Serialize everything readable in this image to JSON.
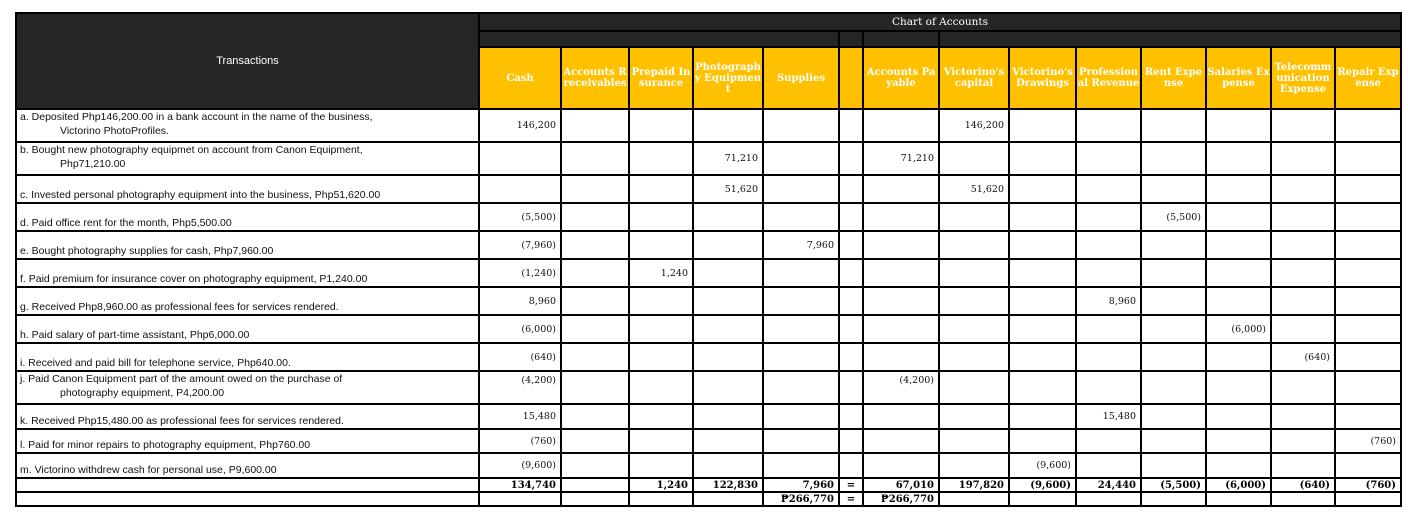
{
  "header": {
    "transactions_label": "Transactions",
    "chart_title": "Chart of Accounts",
    "accounts": [
      "Cash",
      "Accounts Rreceivables",
      "Prepaid Insurance",
      "Photography Equipment",
      "Supplies",
      "",
      "Accounts Payable",
      "Victorino's capital",
      "Victorino's Drawings",
      "Professional Revenue",
      "Rent Expense",
      "Salaries Expense",
      "Telecommunication Expense",
      "Repair Expense"
    ]
  },
  "colors": {
    "header_dark": "#262626",
    "header_accent": "#FFC000",
    "border": "#000000"
  },
  "rows": [
    {
      "line1": "a. Deposited Php146,200.00 in a bank account in the name of the business,",
      "line2": "Victorino PhotoProfiles.",
      "v": [
        "146,200",
        "",
        "",
        "",
        "",
        "",
        "",
        "146,200",
        "",
        "",
        "",
        "",
        "",
        ""
      ]
    },
    {
      "line1": "b. Bought new photography equipmet on account from Canon Equipment,",
      "line2": "Php71,210.00",
      "v": [
        "",
        "",
        "",
        "71,210",
        "",
        "",
        "71,210",
        "",
        "",
        "",
        "",
        "",
        "",
        ""
      ]
    },
    {
      "line1": "c. Invested personal photography equipment into the business, Php51,620.00",
      "line2": "",
      "v": [
        "",
        "",
        "",
        "51,620",
        "",
        "",
        "",
        "51,620",
        "",
        "",
        "",
        "",
        "",
        ""
      ]
    },
    {
      "line1": "d. Paid office rent for the month, Php5,500.00",
      "line2": "",
      "v": [
        "(5,500)",
        "",
        "",
        "",
        "",
        "",
        "",
        "",
        "",
        "",
        "(5,500)",
        "",
        "",
        ""
      ]
    },
    {
      "line1": "e. Bought photography supplies for cash, Php7,960.00",
      "line2": "",
      "v": [
        "(7,960)",
        "",
        "",
        "",
        "7,960",
        "",
        "",
        "",
        "",
        "",
        "",
        "",
        "",
        ""
      ]
    },
    {
      "line1": "f. Paid premium for insurance cover on photography equipment, P1,240.00",
      "line2": "",
      "v": [
        "(1,240)",
        "",
        "1,240",
        "",
        "",
        "",
        "",
        "",
        "",
        "",
        "",
        "",
        "",
        ""
      ]
    },
    {
      "line1": "g. Received Php8,960.00 as professional fees for services rendered.",
      "line2": "",
      "v": [
        "8,960",
        "",
        "",
        "",
        "",
        "",
        "",
        "",
        "",
        "8,960",
        "",
        "",
        "",
        ""
      ]
    },
    {
      "line1": "h. Paid salary of part-time assistant, Php6,000.00",
      "line2": "",
      "v": [
        "(6,000)",
        "",
        "",
        "",
        "",
        "",
        "",
        "",
        "",
        "",
        "",
        "(6,000)",
        "",
        ""
      ]
    },
    {
      "line1": "i. Received and paid bill for telephone service, Php640.00.",
      "line2": "",
      "v": [
        "(640)",
        "",
        "",
        "",
        "",
        "",
        "",
        "",
        "",
        "",
        "",
        "",
        "(640)",
        ""
      ]
    },
    {
      "line1": "j. Paid Canon Equipment part of the amount owed on the purchase of",
      "line2": "photography equipment, P4,200.00",
      "v": [
        "(4,200)",
        "",
        "",
        "",
        "",
        "",
        "(4,200)",
        "",
        "",
        "",
        "",
        "",
        "",
        ""
      ]
    },
    {
      "line1": "k. Received Php15,480.00 as professional fees for services rendered.",
      "line2": "",
      "v": [
        "15,480",
        "",
        "",
        "",
        "",
        "",
        "",
        "",
        "",
        "15,480",
        "",
        "",
        "",
        ""
      ]
    },
    {
      "line1": "l. Paid for minor repairs to photography equipment, Php760.00",
      "line2": "",
      "v": [
        "(760)",
        "",
        "",
        "",
        "",
        "",
        "",
        "",
        "",
        "",
        "",
        "",
        "",
        "(760)"
      ]
    },
    {
      "line1": "m. Victorino withdrew cash for personal use, P9,600.00",
      "line2": "",
      "v": [
        "(9,600)",
        "",
        "",
        "",
        "",
        "",
        "",
        "",
        "(9,600)",
        "",
        "",
        "",
        "",
        ""
      ]
    }
  ],
  "totals": [
    "134,740",
    "",
    "1,240",
    "122,830",
    "7,960",
    "=",
    "67,010",
    "197,820",
    "(9,600)",
    "24,440",
    "(5,500)",
    "(6,000)",
    "(640)",
    "(760)"
  ],
  "grand_totals": [
    "",
    "",
    "",
    "",
    "₱266,770",
    "=",
    "₱266,770",
    "",
    "",
    "",
    "",
    "",
    "",
    ""
  ]
}
